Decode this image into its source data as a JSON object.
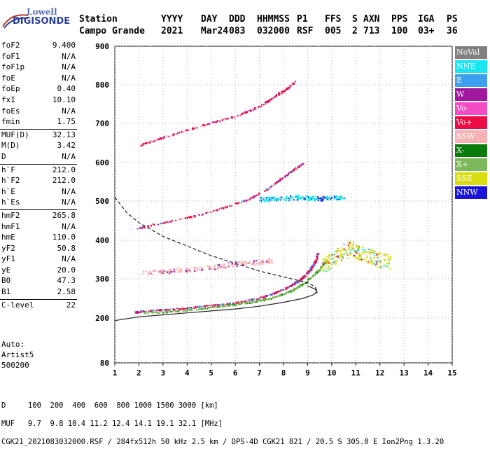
{
  "logo": {
    "line1": "Lowell",
    "line2": "DIGISONDE"
  },
  "header": {
    "row1": [
      {
        "label": "Station",
        "value": "Campo Grande"
      },
      {
        "label": "YYYY",
        "value": "2021"
      },
      {
        "label": "DAY",
        "value": "Mar24"
      },
      {
        "label": "DDD",
        "value": "083"
      },
      {
        "label": "HHMMSS",
        "value": "032000"
      },
      {
        "label": "P1",
        "value": "RSF"
      },
      {
        "label": "FFS",
        "value": "005"
      },
      {
        "label": "S",
        "value": "2"
      },
      {
        "label": "AXN",
        "value": "713"
      },
      {
        "label": "PPS",
        "value": "100"
      },
      {
        "label": "IGA",
        "value": "03+"
      },
      {
        "label": "PS",
        "value": "36"
      }
    ]
  },
  "params": [
    [
      {
        "k": "foF2",
        "v": "9.400"
      },
      {
        "k": "foF1",
        "v": "N/A"
      },
      {
        "k": "foF1p",
        "v": "N/A"
      },
      {
        "k": "foE",
        "v": "N/A"
      },
      {
        "k": "foEp",
        "v": "0.40"
      },
      {
        "k": "fxI",
        "v": "10.10"
      },
      {
        "k": "foEs",
        "v": "N/A"
      },
      {
        "k": "fmin",
        "v": "1.75"
      }
    ],
    [
      {
        "k": "MUF(D)",
        "v": "32.13"
      },
      {
        "k": "M(D)",
        "v": "3.42"
      },
      {
        "k": "D",
        "v": "N/A"
      }
    ],
    [
      {
        "k": "h`F",
        "v": "212.0"
      },
      {
        "k": "h`F2",
        "v": "212.0"
      },
      {
        "k": "h`E",
        "v": "N/A"
      },
      {
        "k": "h`Es",
        "v": "N/A"
      }
    ],
    [
      {
        "k": "hmF2",
        "v": "265.8"
      },
      {
        "k": "hmF1",
        "v": "N/A"
      },
      {
        "k": "hmE",
        "v": "110.0"
      },
      {
        "k": "yF2",
        "v": "50.8"
      },
      {
        "k": "yF1",
        "v": "N/A"
      },
      {
        "k": "yE",
        "v": "20.0"
      },
      {
        "k": "B0",
        "v": "47.3"
      },
      {
        "k": "B1",
        "v": "2.58"
      }
    ],
    [
      {
        "k": "C-level",
        "v": "22"
      }
    ]
  ],
  "auto": {
    "l1": "Auto:",
    "l2": "Artist5",
    "l3": "500200"
  },
  "legend": [
    {
      "label": "NoVal",
      "color": "#808080"
    },
    {
      "label": "NNE",
      "color": "#19e6f0"
    },
    {
      "label": "E",
      "color": "#3da0ee"
    },
    {
      "label": "W",
      "color": "#a0189e"
    },
    {
      "label": "Vo-",
      "color": "#f24bc4"
    },
    {
      "label": "Vo+",
      "color": "#ec0c45"
    },
    {
      "label": "SSW",
      "color": "#f4b2b2"
    },
    {
      "label": "X-",
      "color": "#0a7a0a"
    },
    {
      "label": "X+",
      "color": "#7cb85a"
    },
    {
      "label": "SSE",
      "color": "#d8dc10"
    },
    {
      "label": "NNW",
      "color": "#1a14d8"
    }
  ],
  "footer": {
    "row1": "D     100  200  400  600  800 1000 1500 3000 [km]",
    "row2": "MUF   9.7  9.8 10.4 11.2 12.4 14.1 19.1 32.1 [MHz]",
    "row3": "CGK21_2021083032000.RSF / 284fx512h 50 kHz 2.5 km / DPS-4D CGK21 821 / 20.5 S 305.0 E Ion2Png 1.3.20"
  },
  "chart_data": {
    "type": "scatter",
    "xlim": [
      1,
      15
    ],
    "ylim": [
      80,
      900
    ],
    "xticks": [
      "1",
      "2",
      "3",
      "4",
      "5",
      "6",
      "7",
      "8",
      "9",
      "10",
      "11",
      "12",
      "13",
      "14",
      "15"
    ],
    "yticks": [
      "80",
      "200",
      "300",
      "400",
      "500",
      "600",
      "700",
      "800",
      "900"
    ],
    "grid": true,
    "traces": [
      {
        "name": "o-trace F2",
        "color": "#ec0c45",
        "x": [
          1.8,
          2.5,
          3.5,
          4.5,
          5.5,
          6.5,
          7.3,
          7.9,
          8.4,
          8.8,
          9.1,
          9.3,
          9.4
        ],
        "y": [
          216,
          220,
          224,
          230,
          236,
          245,
          258,
          272,
          288,
          305,
          325,
          345,
          368
        ]
      },
      {
        "name": "2-hop F2",
        "color": "#ec0c45",
        "x": [
          1.9,
          2.5,
          3.5,
          4.5,
          5.5,
          6.5,
          7.3,
          7.9,
          8.4,
          8.8
        ],
        "y": [
          430,
          440,
          452,
          466,
          484,
          505,
          532,
          560,
          582,
          600
        ]
      },
      {
        "name": "3-hop F2",
        "color": "#ec0c45",
        "x": [
          2.0,
          3.0,
          4.0,
          5.0,
          6.0,
          7.0,
          7.6,
          8.1,
          8.5
        ],
        "y": [
          645,
          665,
          685,
          702,
          720,
          745,
          770,
          790,
          810
        ]
      },
      {
        "name": "x-trace",
        "color": "#7cb85a",
        "x": [
          2.2,
          3.5,
          4.5,
          5.5,
          6.5,
          7.5,
          8.3,
          8.9,
          9.4,
          9.8
        ],
        "y": [
          215,
          218,
          225,
          232,
          240,
          252,
          270,
          292,
          320,
          350
        ]
      },
      {
        "name": "spread SSW",
        "color": "#f4b2b2",
        "x": [
          2.0,
          3.0,
          4.0,
          5.0,
          6.0,
          7.0,
          7.5
        ],
        "y": [
          315,
          320,
          325,
          330,
          340,
          345,
          348
        ]
      },
      {
        "name": "spread cyan",
        "color": "#19e6f0",
        "x": [
          7.0,
          7.5,
          8.0,
          8.5,
          9.0,
          9.5,
          10.0,
          10.5
        ],
        "y": [
          505,
          506,
          508,
          510,
          509,
          508,
          510,
          512
        ]
      },
      {
        "name": "spread F 10-12MHz",
        "color": "#d8dc10",
        "x": [
          9.6,
          10.0,
          10.4,
          10.8,
          11.2,
          11.6,
          12.0,
          12.4
        ],
        "y": [
          335,
          350,
          370,
          380,
          365,
          360,
          350,
          345
        ]
      }
    ],
    "profile_curves": [
      {
        "name": "solid profile",
        "style": "solid",
        "x": [
          1.0,
          2.0,
          3.0,
          4.0,
          5.0,
          6.0,
          7.0,
          8.0,
          8.8,
          9.2,
          9.4,
          9.3,
          9.0
        ],
        "y": [
          193,
          203,
          208,
          213,
          218,
          223,
          230,
          240,
          250,
          258,
          266,
          274,
          282
        ]
      },
      {
        "name": "dashed MUF",
        "style": "dashed",
        "x": [
          1.0,
          1.5,
          2.0,
          3.0,
          4.0,
          5.0,
          6.0,
          7.0,
          8.0,
          9.0,
          9.3,
          9.4,
          9.3
        ],
        "y": [
          510,
          470,
          445,
          410,
          385,
          360,
          340,
          320,
          305,
          290,
          280,
          270,
          262
        ]
      }
    ]
  }
}
